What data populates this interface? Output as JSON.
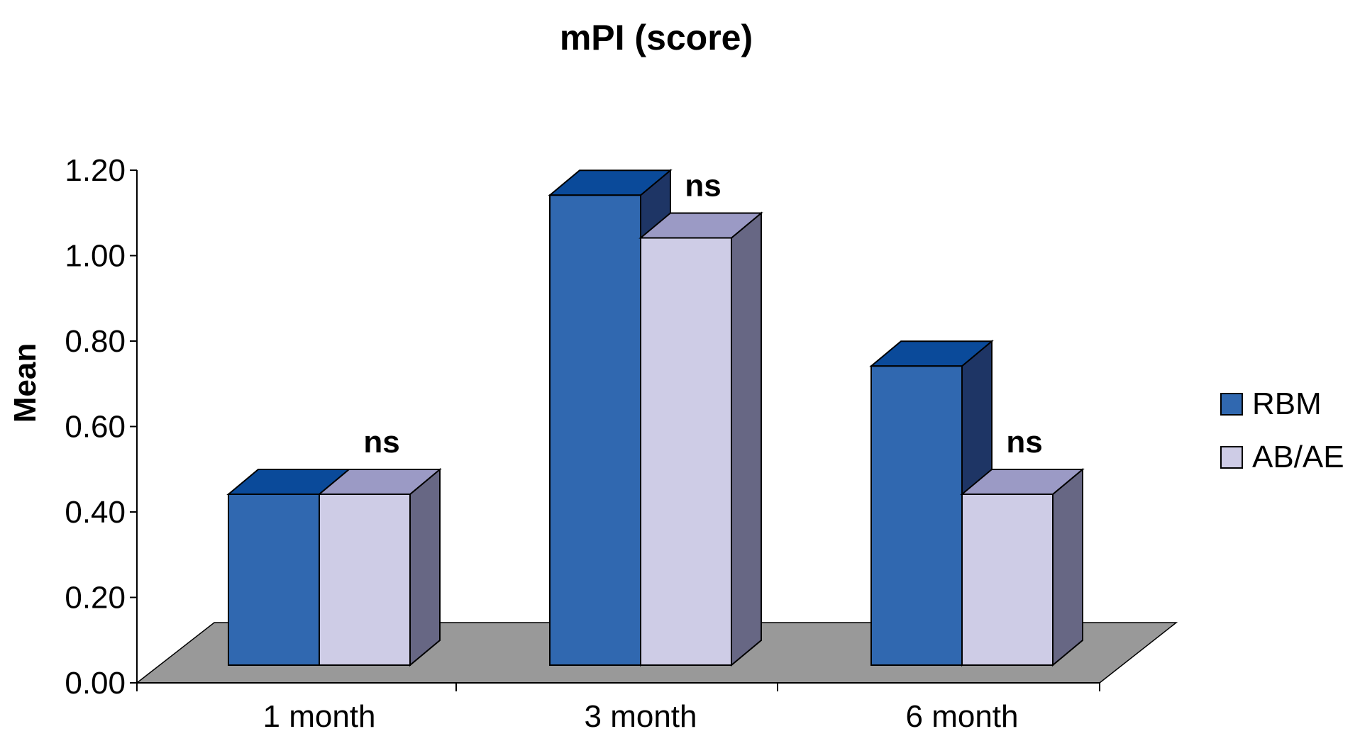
{
  "chart_data": {
    "type": "bar",
    "title": "mPI (score)",
    "ylabel": "Mean",
    "xlabel": "",
    "categories": [
      "1 month",
      "3 month",
      "6 month"
    ],
    "series": [
      {
        "name": "RBM",
        "values": [
          0.4,
          1.1,
          0.7
        ],
        "color": "#3068b0"
      },
      {
        "name": "AB/AE",
        "values": [
          0.4,
          1.0,
          0.4
        ],
        "color": "#cecce6"
      }
    ],
    "yticks": [
      "0.00",
      "0.20",
      "0.40",
      "0.60",
      "0.80",
      "1.00",
      "1.20"
    ],
    "ylim": [
      0,
      1.2
    ],
    "annotations": [
      {
        "category": "1 month",
        "text": "ns"
      },
      {
        "category": "3 month",
        "text": "ns"
      },
      {
        "category": "6 month",
        "text": "ns"
      }
    ],
    "legend_position": "right",
    "grid": false,
    "style": "3d-bar",
    "floor_color": "#999999"
  }
}
